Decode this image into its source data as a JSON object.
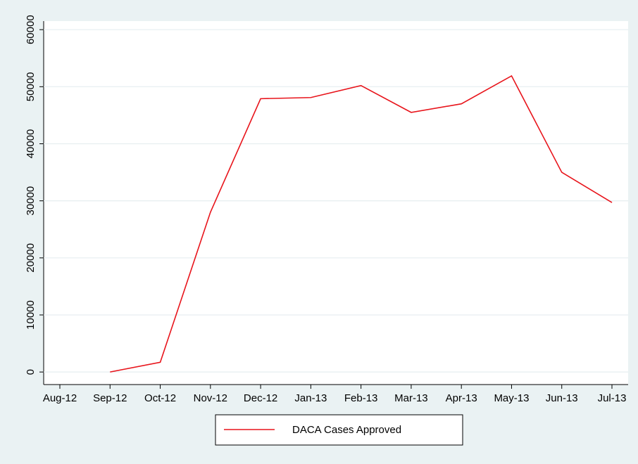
{
  "chart_data": {
    "type": "line",
    "categories": [
      "Aug-12",
      "Sep-12",
      "Oct-12",
      "Nov-12",
      "Dec-12",
      "Jan-13",
      "Feb-13",
      "Mar-13",
      "Apr-13",
      "May-13",
      "Jun-13",
      "Jul-13"
    ],
    "series": [
      {
        "name": "DACA Cases Approved",
        "color": "#e8141b",
        "values": [
          null,
          0,
          1700,
          28000,
          47900,
          48100,
          50200,
          45500,
          47000,
          51900,
          35000,
          29700
        ]
      }
    ],
    "ylim": [
      -2200,
      61500
    ],
    "yticks": [
      0,
      10000,
      20000,
      30000,
      40000,
      50000,
      60000
    ],
    "grid": true
  }
}
